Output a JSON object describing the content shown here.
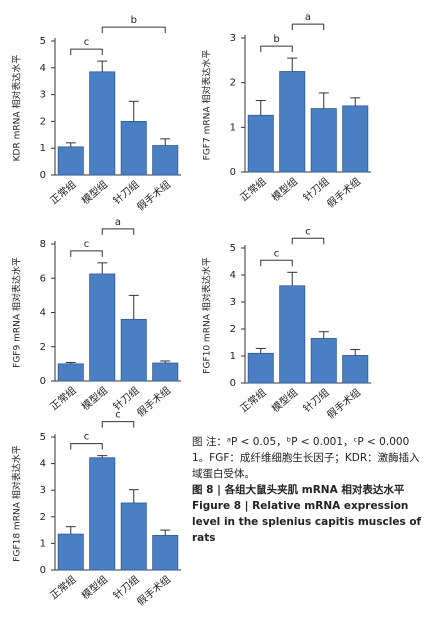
{
  "chart_data": [
    {
      "type": "bar",
      "y_label": "KDR mRNA 相对表达水平",
      "categories": [
        "正常组",
        "模型组",
        "针刀组",
        "假手术组"
      ],
      "values": [
        1.05,
        3.85,
        2.0,
        1.1
      ],
      "errors": [
        0.15,
        0.4,
        0.75,
        0.25
      ],
      "color": "#4a7fc4",
      "ylim": [
        0,
        5
      ],
      "yticks": [
        0,
        1,
        2,
        3,
        4,
        5
      ],
      "significance": [
        {
          "label": "c",
          "between": [
            "正常组",
            "模型组"
          ]
        },
        {
          "label": "b",
          "between": [
            "模型组",
            "假手术组"
          ]
        }
      ]
    },
    {
      "type": "bar",
      "y_label": "FGF7 mRNA 相对表达水平",
      "categories": [
        "正常组",
        "模型组",
        "针刀组",
        "假手术组"
      ],
      "values": [
        1.27,
        2.25,
        1.42,
        1.48
      ],
      "errors": [
        0.33,
        0.3,
        0.35,
        0.18
      ],
      "color": "#4a7fc4",
      "ylim": [
        0,
        3
      ],
      "yticks": [
        0,
        1,
        2,
        3
      ],
      "significance": [
        {
          "label": "b",
          "between": [
            "正常组",
            "模型组"
          ]
        },
        {
          "label": "a",
          "between": [
            "模型组",
            "针刀组"
          ]
        }
      ]
    },
    {
      "type": "bar",
      "y_label": "FGF9 mRNA 相对表达水平",
      "categories": [
        "正常组",
        "模型组",
        "针刀组",
        "假手术组"
      ],
      "values": [
        1.0,
        6.25,
        3.6,
        1.05
      ],
      "errors": [
        0.08,
        0.65,
        1.4,
        0.12
      ],
      "color": "#4a7fc4",
      "ylim": [
        0,
        8
      ],
      "yticks": [
        0,
        2,
        4,
        6,
        8
      ],
      "significance": [
        {
          "label": "c",
          "between": [
            "正常组",
            "模型组"
          ]
        },
        {
          "label": "a",
          "between": [
            "模型组",
            "针刀组"
          ]
        }
      ]
    },
    {
      "type": "bar",
      "y_label": "FGF10 mRNA 相对表达水平",
      "categories": [
        "正常组",
        "模型组",
        "针刀组",
        "假手术组"
      ],
      "values": [
        1.1,
        3.6,
        1.65,
        1.02
      ],
      "errors": [
        0.18,
        0.5,
        0.25,
        0.22
      ],
      "color": "#4a7fc4",
      "ylim": [
        0,
        5
      ],
      "yticks": [
        0,
        1,
        2,
        3,
        4,
        5
      ],
      "significance": [
        {
          "label": "c",
          "between": [
            "正常组",
            "模型组"
          ]
        },
        {
          "label": "c",
          "between": [
            "模型组",
            "针刀组"
          ]
        }
      ]
    },
    {
      "type": "bar",
      "y_label": "FGF18 mRNA 相对表达水平",
      "categories": [
        "正常组",
        "模型组",
        "针刀组",
        "假手术组"
      ],
      "values": [
        1.35,
        4.22,
        2.52,
        1.3
      ],
      "errors": [
        0.28,
        0.08,
        0.5,
        0.2
      ],
      "color": "#4a7fc4",
      "ylim": [
        0,
        5
      ],
      "yticks": [
        0,
        1,
        2,
        3,
        4,
        5
      ],
      "significance": [
        {
          "label": "c",
          "between": [
            "正常组",
            "模型组"
          ]
        },
        {
          "label": "c",
          "between": [
            "模型组",
            "针刀组"
          ]
        }
      ]
    }
  ],
  "caption": {
    "note": "图 注：ᵃP < 0.05，ᵇP < 0.001，ᶜP < 0.000 1。FGF：成纤维细胞生长因子；KDR：激酶插入域蛋白受体。",
    "title_zh": "图 8 | 各组大鼠头夹肌 mRNA 相对表达水平",
    "title_en": "Figure 8 | Relative mRNA expression level in the splenius capitis muscles of rats"
  }
}
